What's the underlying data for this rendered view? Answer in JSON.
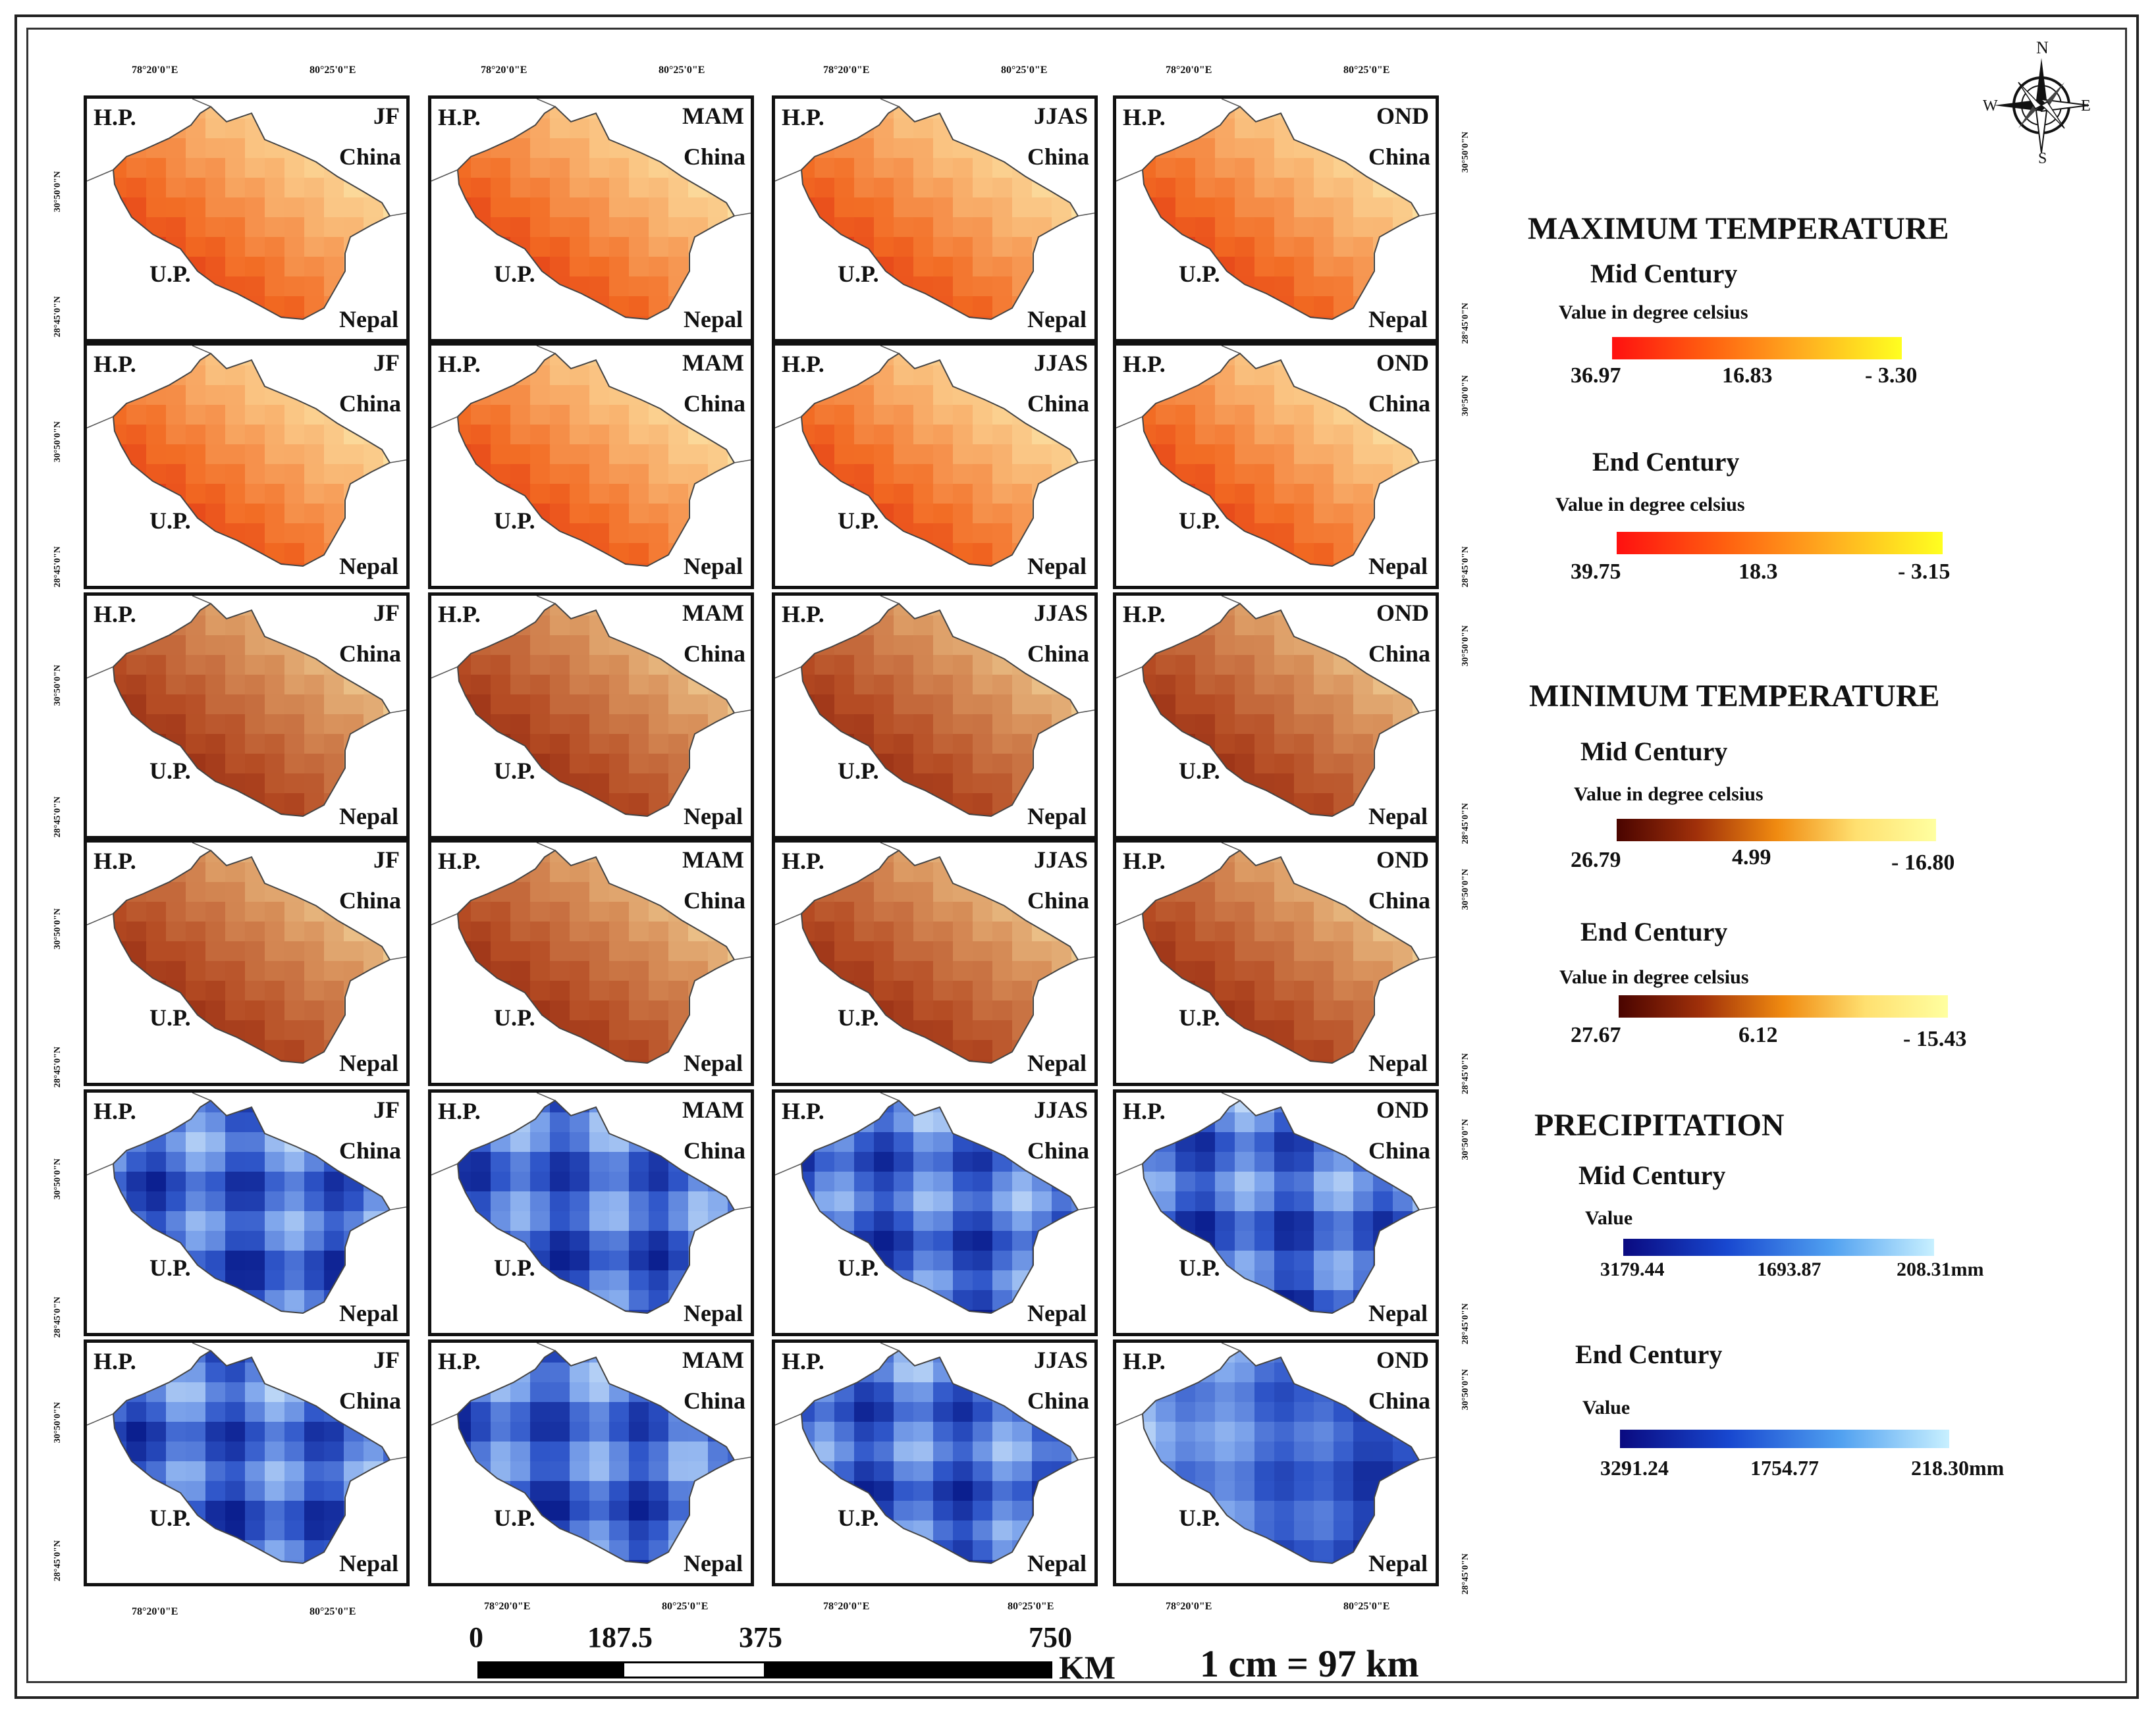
{
  "coordinates": {
    "lon_west": "78°20'0\"E",
    "lon_east": "80°25'0\"E",
    "lat_north": "30°50'0\"N",
    "lat_south": "28°45'0\"N"
  },
  "place_labels": {
    "hp": "H.P.",
    "china": "China",
    "up": "U.P.",
    "nepal": "Nepal"
  },
  "seasons": [
    "JF",
    "MAM",
    "JJAS",
    "OND"
  ],
  "rows": [
    {
      "variable": "Maximum Temperature",
      "period": "Mid Century",
      "palette": "maxtemp"
    },
    {
      "variable": "Maximum Temperature",
      "period": "End Century",
      "palette": "maxtemp"
    },
    {
      "variable": "Minimum Temperature",
      "period": "Mid Century",
      "palette": "mintemp"
    },
    {
      "variable": "Minimum Temperature",
      "period": "End Century",
      "palette": "mintemp"
    },
    {
      "variable": "Precipitation",
      "period": "Mid Century",
      "palette": "precip"
    },
    {
      "variable": "Precipitation",
      "period": "End Century",
      "palette": "precip"
    }
  ],
  "compass": {
    "n": "N",
    "s": "S",
    "e": "E",
    "w": "W"
  },
  "legend": {
    "max_temp": {
      "title": "MAXIMUM TEMPERATURE",
      "mid": {
        "label": "Mid Century",
        "unit": "Value in degree celsius",
        "values": [
          "36.97",
          "16.83",
          "- 3.30"
        ]
      },
      "end": {
        "label": "End Century",
        "unit": "Value in degree celsius",
        "values": [
          "39.75",
          "18.3",
          "- 3.15"
        ]
      }
    },
    "min_temp": {
      "title": "MINIMUM TEMPERATURE",
      "mid": {
        "label": "Mid Century",
        "unit": "Value in degree celsius",
        "values": [
          "26.79",
          "4.99",
          "- 16.80"
        ]
      },
      "end": {
        "label": "End Century",
        "unit": "Value in degree celsius",
        "values": [
          "27.67",
          "6.12",
          "- 15.43"
        ]
      }
    },
    "precip": {
      "title": "PRECIPITATION",
      "mid": {
        "label": "Mid Century",
        "unit": "Value",
        "values": [
          "3179.44",
          "1693.87",
          "208.31mm"
        ]
      },
      "end": {
        "label": "End Century",
        "unit": "Value",
        "values": [
          "3291.24",
          "1754.77",
          "218.30mm"
        ]
      }
    }
  },
  "scale_bar": {
    "ticks": [
      "0",
      "187.5",
      "375",
      "750"
    ],
    "unit": "KM",
    "ratio": "1 cm = 97 km"
  },
  "colors": {
    "maxtemp": [
      "#d81a10",
      "#f26a22",
      "#f9b774",
      "#fdf2b5"
    ],
    "mintemp": [
      "#7a1408",
      "#b44a22",
      "#d8905a",
      "#f7e2a8"
    ],
    "precip": [
      "#0b1f8f",
      "#2f56c9",
      "#7fa6ec",
      "#d8ecfb"
    ]
  }
}
